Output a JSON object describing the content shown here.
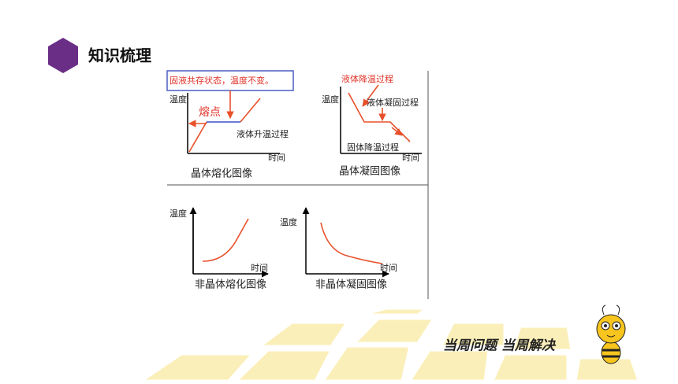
{
  "header": {
    "title": "知识梳理"
  },
  "panels": [
    {
      "banner": "固液共存状态，温度不变。",
      "y_label": "温度",
      "x_label": "时间",
      "annotations": [
        "熔点",
        "液体升温过程"
      ],
      "caption": "晶体熔化图像"
    },
    {
      "y_label": "温度",
      "x_label": "时间",
      "annotations": [
        "液体降温过程",
        "液体凝固过程",
        "固体降温过程"
      ],
      "caption": "晶体凝固图像"
    },
    {
      "y_label": "温度",
      "x_label": "时间",
      "caption": "非晶体熔化图像"
    },
    {
      "y_label": "温度",
      "x_label": "时间",
      "caption": "非晶体凝固图像"
    }
  ],
  "footer": {
    "slogan": "当周问题 当周解决"
  }
}
